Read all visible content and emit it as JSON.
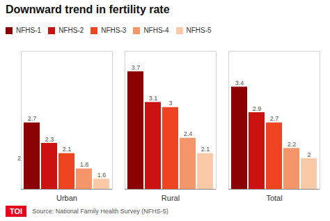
{
  "chart_data": {
    "type": "bar",
    "title": "Downward trend in fertility rate",
    "categories": [
      "Urban",
      "Rural",
      "Total"
    ],
    "series": [
      {
        "name": "NFHS-1",
        "values": [
          2.7,
          3.7,
          3.4
        ],
        "color": "#8B0000"
      },
      {
        "name": "NFHS-2",
        "values": [
          2.3,
          3.1,
          2.9
        ],
        "color": "#CC1111"
      },
      {
        "name": "NFHS-3",
        "values": [
          2.1,
          3.0,
          2.7
        ],
        "color": "#EE4422"
      },
      {
        "name": "NFHS-4",
        "values": [
          1.8,
          2.4,
          2.2
        ],
        "color": "#F4956A"
      },
      {
        "name": "NFHS-5",
        "values": [
          1.6,
          2.1,
          2.0
        ],
        "color": "#F9C9A8"
      }
    ],
    "ylim": [
      1.4,
      4.1
    ],
    "data_labels": true,
    "tick_labels": "x",
    "legend": "top left",
    "annotations": [
      {
        "text": "2",
        "y": 2.0
      },
      {
        "text": "TOI",
        "color": "#E8001C"
      },
      {
        "text": "Source: National Family Health Survey (NFHS-5)"
      }
    ]
  }
}
